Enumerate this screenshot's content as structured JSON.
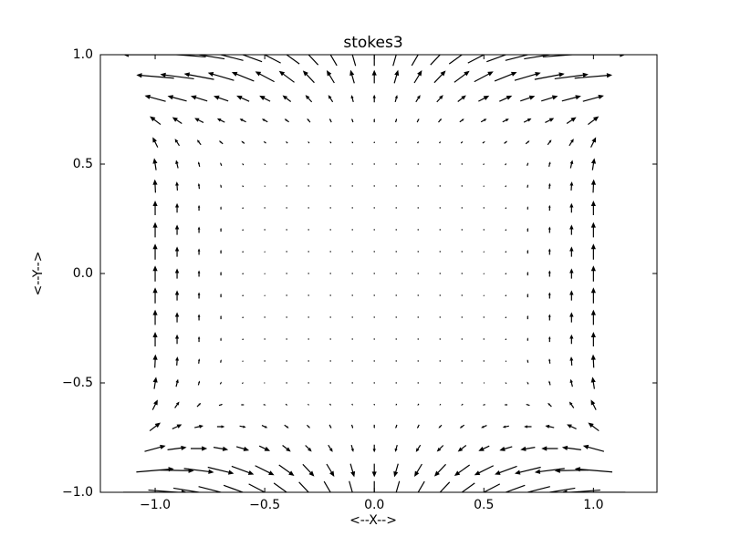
{
  "chart_data": {
    "type": "quiver",
    "title": "stokes3",
    "xlabel": "<--X-->",
    "ylabel": "<--Y-->",
    "color": "#000000",
    "xlim": [
      -1.25,
      1.29
    ],
    "ylim": [
      -1,
      1
    ],
    "xticks": [
      {
        "value": -1,
        "label": "−1.0"
      },
      {
        "value": -0.5,
        "label": "−0.5"
      },
      {
        "value": 0,
        "label": "0.0"
      },
      {
        "value": 0.5,
        "label": "0.5"
      },
      {
        "value": 1,
        "label": "1.0"
      }
    ],
    "yticks": [
      {
        "value": -1,
        "label": "−1.0"
      },
      {
        "value": -0.5,
        "label": "−0.5"
      },
      {
        "value": 0,
        "label": "0.0"
      },
      {
        "value": 0.5,
        "label": "0.5"
      },
      {
        "value": 1,
        "label": "1.0"
      }
    ],
    "x": [
      -1,
      -0.9,
      -0.8,
      -0.7,
      -0.6,
      -0.5,
      -0.4,
      -0.3,
      -0.2,
      -0.1,
      0,
      0.1,
      0.2,
      0.3,
      0.4,
      0.5,
      0.6,
      0.7,
      0.8,
      0.9,
      1
    ],
    "y": [
      -1,
      -0.9,
      -0.8,
      -0.7,
      -0.6,
      -0.5,
      -0.4,
      -0.3,
      -0.2,
      -0.1,
      0,
      0.1,
      0.2,
      0.3,
      0.4,
      0.5,
      0.6,
      0.7,
      0.8,
      0.9,
      1
    ],
    "u": [
      [
        1,
        0.9,
        0.8,
        0.7,
        0.6,
        0.5,
        0.4,
        0.3,
        0.2,
        0.1,
        0,
        -0.1,
        -0.2,
        -0.3,
        -0.4,
        -0.5,
        -0.6,
        -0.7,
        -0.8,
        -0.9,
        -1
      ],
      [
        0.59,
        0.53,
        0.47,
        0.41,
        0.35,
        0.3,
        0.24,
        0.18,
        0.12,
        0.06,
        0,
        -0.06,
        -0.12,
        -0.18,
        -0.24,
        -0.3,
        -0.35,
        -0.41,
        -0.47,
        -0.53,
        -0.59
      ],
      [
        0.33,
        0.3,
        0.26,
        0.23,
        0.2,
        0.17,
        0.13,
        0.1,
        0.07,
        0.03,
        0,
        -0.03,
        -0.07,
        -0.1,
        -0.13,
        -0.17,
        -0.2,
        -0.23,
        -0.26,
        -0.3,
        -0.33
      ],
      [
        0.17,
        0.15,
        0.14,
        0.12,
        0.1,
        0.09,
        0.07,
        0.05,
        0.03,
        0.02,
        0,
        -0.02,
        -0.03,
        -0.05,
        -0.07,
        -0.09,
        -0.1,
        -0.12,
        -0.14,
        -0.15,
        -0.17
      ],
      [
        0.08,
        0.07,
        0.06,
        0.06,
        0.05,
        0.04,
        0.03,
        0.02,
        0.02,
        0.01,
        0,
        -0.01,
        -0.02,
        -0.02,
        -0.03,
        -0.04,
        -0.05,
        -0.06,
        -0.06,
        -0.07,
        -0.08
      ],
      [
        0.03,
        0.03,
        0.02,
        0.02,
        0.02,
        0.02,
        0.01,
        0.01,
        0.01,
        0,
        0,
        0,
        -0.01,
        -0.01,
        -0.01,
        -0.02,
        -0.02,
        -0.02,
        -0.02,
        -0.03,
        -0.03
      ],
      [
        0.01,
        0.01,
        0.01,
        0.01,
        0.01,
        0.01,
        0,
        0,
        0,
        0,
        0,
        0,
        0,
        0,
        0,
        -0.01,
        -0.01,
        -0.01,
        -0.01,
        -0.01,
        -0.01
      ],
      [
        0,
        0,
        0,
        0,
        0,
        0,
        0,
        0,
        0,
        0,
        0,
        0,
        0,
        0,
        0,
        0,
        0,
        0,
        0,
        0,
        0
      ],
      [
        0,
        0,
        0,
        0,
        0,
        0,
        0,
        0,
        0,
        0,
        0,
        0,
        0,
        0,
        0,
        0,
        0,
        0,
        0,
        0,
        0
      ],
      [
        0,
        0,
        0,
        0,
        0,
        0,
        0,
        0,
        0,
        0,
        0,
        0,
        0,
        0,
        0,
        0,
        0,
        0,
        0,
        0,
        0
      ],
      [
        0,
        0,
        0,
        0,
        0,
        0,
        0,
        0,
        0,
        0,
        0,
        0,
        0,
        0,
        0,
        0,
        0,
        0,
        0,
        0,
        0
      ],
      [
        0,
        0,
        0,
        0,
        0,
        0,
        0,
        0,
        0,
        0,
        0,
        0,
        0,
        0,
        0,
        0,
        0,
        0,
        0,
        0,
        0
      ],
      [
        0,
        0,
        0,
        0,
        0,
        0,
        0,
        0,
        0,
        0,
        0,
        0,
        0,
        0,
        0,
        0,
        0,
        0,
        0,
        0,
        0
      ],
      [
        0,
        0,
        0,
        0,
        0,
        0,
        0,
        0,
        0,
        0,
        0,
        0,
        0,
        0,
        0,
        0,
        0,
        0,
        0,
        0,
        0
      ],
      [
        -0.01,
        -0.01,
        -0.01,
        -0.01,
        -0.01,
        -0.01,
        0,
        0,
        0,
        0,
        0,
        0,
        0,
        0,
        0,
        0.01,
        0.01,
        0.01,
        0.01,
        0.01,
        0.01
      ],
      [
        -0.03,
        -0.03,
        -0.02,
        -0.02,
        -0.02,
        -0.02,
        -0.01,
        -0.01,
        -0.01,
        0,
        0,
        0,
        0.01,
        0.01,
        0.01,
        0.02,
        0.02,
        0.02,
        0.02,
        0.03,
        0.03
      ],
      [
        -0.08,
        -0.07,
        -0.06,
        -0.06,
        -0.05,
        -0.04,
        -0.03,
        -0.02,
        -0.02,
        -0.01,
        0,
        0.01,
        0.02,
        0.02,
        0.03,
        0.04,
        0.05,
        0.06,
        0.06,
        0.07,
        0.08
      ],
      [
        -0.17,
        -0.15,
        -0.14,
        -0.12,
        -0.1,
        -0.09,
        -0.07,
        -0.05,
        -0.03,
        -0.02,
        0,
        0.02,
        0.03,
        0.05,
        0.07,
        0.09,
        0.1,
        0.12,
        0.14,
        0.15,
        0.17
      ],
      [
        -0.33,
        -0.3,
        -0.26,
        -0.23,
        -0.2,
        -0.17,
        -0.13,
        -0.1,
        -0.07,
        -0.03,
        0,
        0.03,
        0.07,
        0.1,
        0.13,
        0.17,
        0.2,
        0.23,
        0.26,
        0.3,
        0.33
      ],
      [
        -0.59,
        -0.53,
        -0.47,
        -0.41,
        -0.35,
        -0.3,
        -0.24,
        -0.18,
        -0.12,
        -0.06,
        0,
        0.06,
        0.12,
        0.18,
        0.24,
        0.3,
        0.35,
        0.41,
        0.47,
        0.53,
        0.59
      ],
      [
        -1,
        -0.9,
        -0.8,
        -0.7,
        -0.6,
        -0.5,
        -0.4,
        -0.3,
        -0.2,
        -0.1,
        0,
        0.1,
        0.2,
        0.3,
        0.4,
        0.5,
        0.6,
        0.7,
        0.8,
        0.9,
        1
      ]
    ],
    "v": [
      [
        0,
        -0.07,
        -0.13,
        -0.18,
        -0.22,
        -0.26,
        -0.29,
        -0.32,
        -0.34,
        -0.35,
        -0.35,
        -0.35,
        -0.34,
        -0.32,
        -0.29,
        -0.26,
        -0.22,
        -0.18,
        -0.13,
        -0.07,
        0
      ],
      [
        0.05,
        -0.01,
        -0.06,
        -0.1,
        -0.13,
        -0.15,
        -0.17,
        -0.19,
        -0.2,
        -0.21,
        -0.21,
        -0.21,
        -0.2,
        -0.19,
        -0.17,
        -0.15,
        -0.13,
        -0.1,
        -0.06,
        -0.01,
        0.05
      ],
      [
        0.09,
        0.04,
        0,
        -0.04,
        -0.06,
        -0.08,
        -0.1,
        -0.1,
        -0.11,
        -0.11,
        -0.12,
        -0.11,
        -0.11,
        -0.1,
        -0.1,
        -0.08,
        -0.06,
        -0.04,
        0,
        0.04,
        0.09
      ],
      [
        0.13,
        0.07,
        0.03,
        0,
        -0.02,
        -0.04,
        -0.05,
        -0.05,
        -0.06,
        -0.06,
        -0.06,
        -0.06,
        -0.06,
        -0.05,
        -0.05,
        -0.04,
        -0.02,
        0,
        0.03,
        0.07,
        0.13
      ],
      [
        0.16,
        0.1,
        0.06,
        0.02,
        0,
        -0.01,
        -0.02,
        -0.02,
        -0.03,
        -0.03,
        -0.03,
        -0.03,
        -0.03,
        -0.02,
        -0.02,
        -0.01,
        0,
        0.02,
        0.06,
        0.1,
        0.16
      ],
      [
        0.19,
        0.12,
        0.07,
        0.04,
        0.02,
        0,
        0,
        -0.01,
        -0.01,
        -0.01,
        -0.01,
        -0.01,
        -0.01,
        -0.01,
        0,
        0,
        0.02,
        0.04,
        0.07,
        0.12,
        0.19
      ],
      [
        0.21,
        0.14,
        0.08,
        0.05,
        0.02,
        0.01,
        0,
        0,
        0,
        0,
        0,
        0,
        0,
        0,
        0,
        0.01,
        0.02,
        0.05,
        0.08,
        0.14,
        0.21
      ],
      [
        0.23,
        0.15,
        0.09,
        0.05,
        0.03,
        0.01,
        0.01,
        0,
        0,
        0,
        0,
        0,
        0,
        0,
        0.01,
        0.01,
        0.03,
        0.05,
        0.09,
        0.15,
        0.23
      ],
      [
        0.24,
        0.16,
        0.1,
        0.06,
        0.03,
        0.01,
        0.01,
        0,
        0,
        0,
        0,
        0,
        0,
        0,
        0.01,
        0.01,
        0.03,
        0.06,
        0.1,
        0.16,
        0.24
      ],
      [
        0.25,
        0.16,
        0.1,
        0.06,
        0.03,
        0.02,
        0.01,
        0,
        0,
        0,
        0,
        0,
        0,
        0,
        0.01,
        0.02,
        0.03,
        0.06,
        0.1,
        0.16,
        0.25
      ],
      [
        0.25,
        0.16,
        0.1,
        0.06,
        0.03,
        0.02,
        0.01,
        0,
        0,
        0,
        0,
        0,
        0,
        0,
        0.01,
        0.02,
        0.03,
        0.06,
        0.1,
        0.16,
        0.25
      ],
      [
        0.25,
        0.16,
        0.1,
        0.06,
        0.03,
        0.02,
        0.01,
        0,
        0,
        0,
        0,
        0,
        0,
        0,
        0.01,
        0.02,
        0.03,
        0.06,
        0.1,
        0.16,
        0.25
      ],
      [
        0.24,
        0.16,
        0.1,
        0.06,
        0.03,
        0.01,
        0.01,
        0,
        0,
        0,
        0,
        0,
        0,
        0,
        0.01,
        0.01,
        0.03,
        0.06,
        0.1,
        0.16,
        0.24
      ],
      [
        0.23,
        0.15,
        0.09,
        0.05,
        0.03,
        0.01,
        0.01,
        0,
        0,
        0,
        0,
        0,
        0,
        0,
        0.01,
        0.01,
        0.03,
        0.05,
        0.09,
        0.15,
        0.23
      ],
      [
        0.21,
        0.14,
        0.09,
        0.05,
        0.03,
        0.02,
        0.01,
        0.01,
        0,
        0,
        0,
        0,
        0,
        0.01,
        0.01,
        0.02,
        0.03,
        0.05,
        0.09,
        0.14,
        0.21
      ],
      [
        0.19,
        0.13,
        0.08,
        0.05,
        0.03,
        0.02,
        0.01,
        0.01,
        0.01,
        0.01,
        0.01,
        0.01,
        0.01,
        0.01,
        0.01,
        0.02,
        0.03,
        0.05,
        0.08,
        0.13,
        0.19
      ],
      [
        0.16,
        0.11,
        0.08,
        0.05,
        0.04,
        0.03,
        0.03,
        0.03,
        0.03,
        0.03,
        0.03,
        0.03,
        0.03,
        0.03,
        0.03,
        0.03,
        0.04,
        0.05,
        0.08,
        0.11,
        0.16
      ],
      [
        0.13,
        0.1,
        0.07,
        0.06,
        0.05,
        0.05,
        0.05,
        0.06,
        0.06,
        0.06,
        0.06,
        0.06,
        0.06,
        0.06,
        0.05,
        0.05,
        0.05,
        0.06,
        0.07,
        0.1,
        0.13
      ],
      [
        0.09,
        0.08,
        0.08,
        0.08,
        0.09,
        0.09,
        0.1,
        0.11,
        0.11,
        0.11,
        0.12,
        0.11,
        0.11,
        0.11,
        0.1,
        0.09,
        0.09,
        0.08,
        0.08,
        0.08,
        0.09
      ],
      [
        0.05,
        0.07,
        0.09,
        0.12,
        0.14,
        0.16,
        0.18,
        0.19,
        0.2,
        0.21,
        0.21,
        0.21,
        0.2,
        0.19,
        0.18,
        0.16,
        0.14,
        0.12,
        0.09,
        0.07,
        0.05
      ],
      [
        0,
        0.07,
        0.13,
        0.18,
        0.22,
        0.26,
        0.29,
        0.32,
        0.34,
        0.35,
        0.35,
        0.35,
        0.34,
        0.32,
        0.29,
        0.26,
        0.22,
        0.18,
        0.13,
        0.07,
        0
      ]
    ]
  }
}
